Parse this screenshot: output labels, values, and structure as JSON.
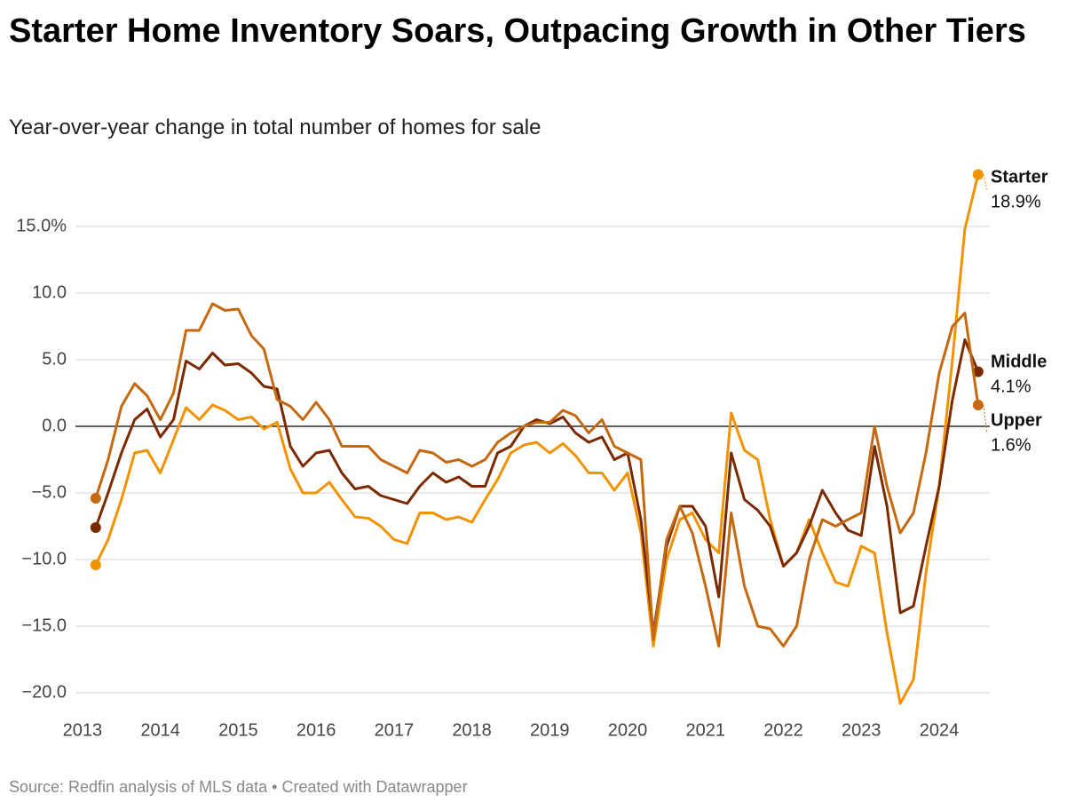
{
  "chart_data": {
    "type": "line",
    "title": "Starter Home Inventory Soars, Outpacing Growth in Other Tiers",
    "subtitle": "Year-over-year change in total number of homes for sale",
    "source": "Source: Redfin analysis of MLS data • Created with Datawrapper",
    "x": [
      2013.17,
      2013.33,
      2013.5,
      2013.67,
      2013.83,
      2014.0,
      2014.17,
      2014.33,
      2014.5,
      2014.67,
      2014.83,
      2015.0,
      2015.17,
      2015.33,
      2015.5,
      2015.67,
      2015.83,
      2016.0,
      2016.17,
      2016.33,
      2016.5,
      2016.67,
      2016.83,
      2017.0,
      2017.17,
      2017.33,
      2017.5,
      2017.67,
      2017.83,
      2018.0,
      2018.17,
      2018.33,
      2018.5,
      2018.67,
      2018.83,
      2019.0,
      2019.17,
      2019.33,
      2019.5,
      2019.67,
      2019.83,
      2020.0,
      2020.17,
      2020.33,
      2020.5,
      2020.67,
      2020.83,
      2021.0,
      2021.17,
      2021.33,
      2021.5,
      2021.67,
      2021.83,
      2022.0,
      2022.17,
      2022.33,
      2022.5,
      2022.67,
      2022.83,
      2023.0,
      2023.17,
      2023.33,
      2023.5,
      2023.67,
      2023.83,
      2024.0,
      2024.17,
      2024.33,
      2024.5
    ],
    "series": [
      {
        "name": "Starter",
        "color": "#f39200",
        "end_label": "18.9%",
        "values": [
          -10.4,
          -8.5,
          -5.5,
          -2.0,
          -1.8,
          -3.5,
          -1.0,
          1.4,
          0.5,
          1.6,
          1.2,
          0.5,
          0.7,
          -0.2,
          0.3,
          -3.2,
          -5.0,
          -5.0,
          -4.2,
          -5.5,
          -6.8,
          -6.9,
          -7.5,
          -8.5,
          -8.8,
          -6.5,
          -6.5,
          -7.0,
          -6.8,
          -7.2,
          -5.5,
          -4.0,
          -2.0,
          -1.4,
          -1.2,
          -2.0,
          -1.3,
          -2.2,
          -3.5,
          -3.5,
          -4.8,
          -3.5,
          -8.0,
          -16.5,
          -10.0,
          -7.0,
          -6.5,
          -8.5,
          -9.5,
          1.0,
          -1.8,
          -2.5,
          -7.0,
          -10.5,
          -9.5,
          -7.0,
          -9.5,
          -11.7,
          -12.0,
          -9.0,
          -9.5,
          -15.5,
          -20.8,
          -19.0,
          -11.0,
          -4.5,
          5.0,
          14.8,
          18.9
        ]
      },
      {
        "name": "Middle",
        "color": "#7b2a00",
        "end_label": "4.1%",
        "values": [
          -7.6,
          -5.0,
          -2.0,
          0.5,
          1.3,
          -0.8,
          0.5,
          4.9,
          4.3,
          5.5,
          4.6,
          4.7,
          4.0,
          3.0,
          2.8,
          -1.5,
          -3.0,
          -2.0,
          -1.8,
          -3.5,
          -4.7,
          -4.5,
          -5.2,
          -5.5,
          -5.8,
          -4.5,
          -3.5,
          -4.2,
          -3.8,
          -4.5,
          -4.5,
          -2.0,
          -1.5,
          0.0,
          0.5,
          0.2,
          0.7,
          -0.5,
          -1.2,
          -0.8,
          -2.5,
          -2.0,
          -7.0,
          -15.5,
          -9.0,
          -6.0,
          -6.0,
          -7.5,
          -12.8,
          -2.0,
          -5.5,
          -6.3,
          -7.5,
          -10.5,
          -9.5,
          -7.5,
          -4.8,
          -6.5,
          -7.8,
          -8.2,
          -1.5,
          -6.0,
          -14.0,
          -13.5,
          -9.0,
          -4.5,
          2.0,
          6.5,
          4.1
        ]
      },
      {
        "name": "Upper",
        "color": "#c4690f",
        "end_label": "1.6%",
        "values": [
          -5.4,
          -2.5,
          1.5,
          3.2,
          2.3,
          0.5,
          2.5,
          7.2,
          7.2,
          9.2,
          8.7,
          8.8,
          6.8,
          5.8,
          2.0,
          1.5,
          0.5,
          1.8,
          0.5,
          -1.5,
          -1.5,
          -1.5,
          -2.5,
          -3.0,
          -3.5,
          -1.8,
          -2.0,
          -2.7,
          -2.5,
          -3.0,
          -2.5,
          -1.2,
          -0.5,
          0.0,
          0.3,
          0.3,
          1.2,
          0.8,
          -0.5,
          0.5,
          -1.5,
          -2.0,
          -2.5,
          -16.0,
          -8.5,
          -6.0,
          -8.0,
          -12.0,
          -16.5,
          -6.5,
          -12.0,
          -15.0,
          -15.2,
          -16.5,
          -15.0,
          -10.0,
          -7.0,
          -7.5,
          -7.0,
          -6.5,
          0.0,
          -4.5,
          -8.0,
          -6.5,
          -2.0,
          4.0,
          7.5,
          8.5,
          1.6
        ]
      }
    ],
    "xlim": [
      2012.91,
      2024.65
    ],
    "xticks": [
      2013,
      2014,
      2015,
      2016,
      2017,
      2018,
      2019,
      2020,
      2021,
      2022,
      2023,
      2024
    ],
    "ylim": [
      -21,
      19
    ],
    "yticks": [
      {
        "value": -20,
        "label": "−20.0"
      },
      {
        "value": -15,
        "label": "−15.0"
      },
      {
        "value": -10,
        "label": "−10.0"
      },
      {
        "value": -5,
        "label": "−5.0"
      },
      {
        "value": 0,
        "label": "0.0"
      },
      {
        "value": 5,
        "label": "5.0"
      },
      {
        "value": 10,
        "label": "10.0"
      },
      {
        "value": 15,
        "label": "15.0%"
      }
    ],
    "grid": true
  }
}
